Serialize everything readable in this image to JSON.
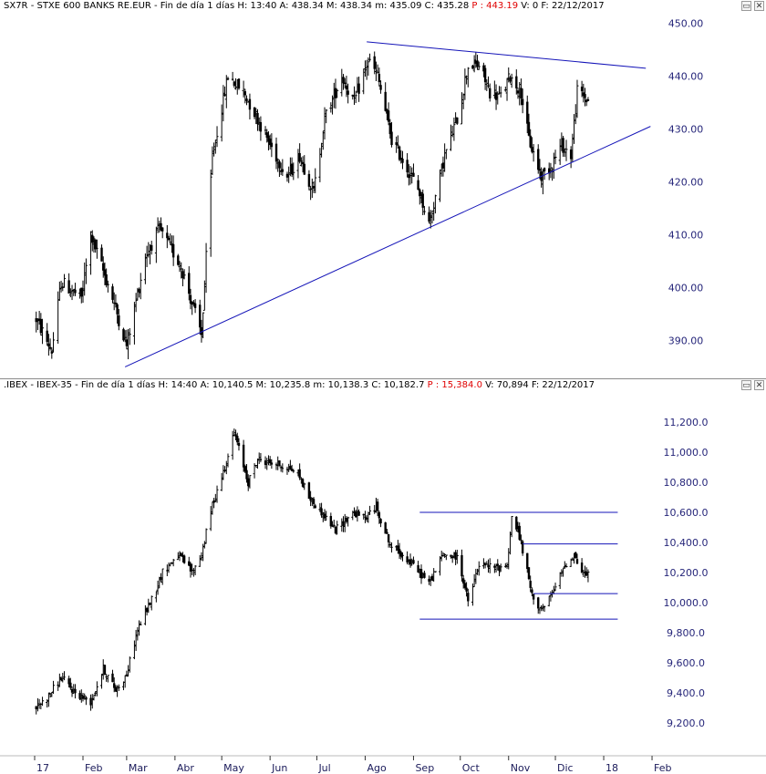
{
  "colors": {
    "candle": "#000000",
    "trendline": "#1414b8",
    "axis_text": "#26267a"
  },
  "charts": [
    {
      "header": {
        "text": "SX7R - STXE 600 BANKS RE.EUR - Fin de día 1 días  H: 13:40  A: 438.34  M: 438.34  m: 435.09  C: 435.28 ",
        "p": "P : 443.19",
        "tail": "  V: 0  F: 22/12/2017"
      },
      "window_buttons": [
        "▭",
        "✕"
      ]
    },
    {
      "header": {
        "text": ".IBEX - IBEX-35 - Fin de día 1 días  H: 14:40  A: 10,140.5  M: 10,235.8  m: 10,138.3  C: 10,182.7 ",
        "p": "P : 15,384.0",
        "tail": "  V: 70,894  F: 22/12/2017"
      },
      "window_buttons": [
        "▭",
        "✕"
      ]
    }
  ],
  "x_axis": {
    "labels": [
      "17",
      "Feb",
      "Mar",
      "Abr",
      "May",
      "Jun",
      "Jul",
      "Ago",
      "Sep",
      "Oct",
      "Nov",
      "Dic",
      "18",
      "Feb"
    ],
    "dates": [
      "2017-01-01",
      "2017-02-01",
      "2017-03-01",
      "2017-04-01",
      "2017-05-01",
      "2017-06-01",
      "2017-07-01",
      "2017-08-01",
      "2017-09-01",
      "2017-10-01",
      "2017-11-01",
      "2017-12-01",
      "2018-01-01",
      "2018-02-01"
    ]
  },
  "chart_data": [
    {
      "type": "candlestick",
      "title": "SX7R - STXE 600 BANKS RE.EUR",
      "ylim": [
        383,
        452
      ],
      "y_ticks": [
        "390.00",
        "400.00",
        "410.00",
        "420.00",
        "430.00",
        "440.00",
        "450.00"
      ],
      "y_tick_values": [
        390,
        400,
        410,
        420,
        430,
        440,
        450
      ],
      "anchors": [
        [
          "2017-01-02",
          394
        ],
        [
          "2017-01-12",
          388
        ],
        [
          "2017-01-18",
          401
        ],
        [
          "2017-01-31",
          398
        ],
        [
          "2017-02-06",
          410
        ],
        [
          "2017-02-20",
          398
        ],
        [
          "2017-03-01",
          389
        ],
        [
          "2017-03-13",
          406
        ],
        [
          "2017-03-22",
          411
        ],
        [
          "2017-04-05",
          404
        ],
        [
          "2017-04-18",
          391
        ],
        [
          "2017-04-25",
          425
        ],
        [
          "2017-05-05",
          440
        ],
        [
          "2017-05-15",
          437
        ],
        [
          "2017-05-24",
          432
        ],
        [
          "2017-06-01",
          427
        ],
        [
          "2017-06-12",
          421
        ],
        [
          "2017-06-20",
          425
        ],
        [
          "2017-06-29",
          418
        ],
        [
          "2017-07-06",
          432
        ],
        [
          "2017-07-17",
          440
        ],
        [
          "2017-07-25",
          435
        ],
        [
          "2017-08-03",
          443
        ],
        [
          "2017-08-09",
          440
        ],
        [
          "2017-08-18",
          428
        ],
        [
          "2017-08-29",
          422
        ],
        [
          "2017-09-05",
          418
        ],
        [
          "2017-09-11",
          412
        ],
        [
          "2017-09-21",
          425
        ],
        [
          "2017-09-29",
          432
        ],
        [
          "2017-10-06",
          442
        ],
        [
          "2017-10-13",
          442
        ],
        [
          "2017-10-20",
          437
        ],
        [
          "2017-10-27",
          436
        ],
        [
          "2017-11-02",
          440
        ],
        [
          "2017-11-09",
          437
        ],
        [
          "2017-11-14",
          428
        ],
        [
          "2017-11-22",
          421
        ],
        [
          "2017-11-28",
          423
        ],
        [
          "2017-12-05",
          427
        ],
        [
          "2017-12-11",
          425
        ],
        [
          "2017-12-15",
          437
        ],
        [
          "2017-12-20",
          436
        ],
        [
          "2017-12-22",
          435.28
        ]
      ],
      "trendlines": [
        {
          "from": [
            "2017-02-28",
            385
          ],
          "to": [
            "2018-01-31",
            430.5
          ]
        },
        {
          "from": [
            "2017-08-02",
            446.5
          ],
          "to": [
            "2018-01-28",
            441.5
          ]
        }
      ]
    },
    {
      "type": "candlestick",
      "title": "IBEX-35",
      "ylim": [
        9000,
        11400
      ],
      "y_ticks": [
        "9,200.0",
        "9,400.0",
        "9,600.0",
        "9,800.0",
        "10,000.0",
        "10,200.0",
        "10,400.0",
        "10,600.0",
        "10,800.0",
        "11,000.0",
        "11,200.0"
      ],
      "y_tick_values": [
        9200,
        9400,
        9600,
        9800,
        10000,
        10200,
        10400,
        10600,
        10800,
        11000,
        11200
      ],
      "anchors": [
        [
          "2017-01-02",
          9300
        ],
        [
          "2017-01-10",
          9380
        ],
        [
          "2017-01-18",
          9500
        ],
        [
          "2017-01-27",
          9400
        ],
        [
          "2017-02-06",
          9340
        ],
        [
          "2017-02-14",
          9560
        ],
        [
          "2017-02-22",
          9420
        ],
        [
          "2017-03-01",
          9520
        ],
        [
          "2017-03-08",
          9820
        ],
        [
          "2017-03-16",
          10000
        ],
        [
          "2017-03-24",
          10200
        ],
        [
          "2017-04-03",
          10320
        ],
        [
          "2017-04-12",
          10200
        ],
        [
          "2017-04-18",
          10320
        ],
        [
          "2017-04-25",
          10650
        ],
        [
          "2017-05-03",
          10900
        ],
        [
          "2017-05-09",
          11130
        ],
        [
          "2017-05-18",
          10800
        ],
        [
          "2017-05-24",
          10950
        ],
        [
          "2017-06-02",
          10930
        ],
        [
          "2017-06-12",
          10900
        ],
        [
          "2017-06-19",
          10860
        ],
        [
          "2017-06-26",
          10700
        ],
        [
          "2017-07-04",
          10600
        ],
        [
          "2017-07-13",
          10480
        ],
        [
          "2017-07-24",
          10600
        ],
        [
          "2017-08-01",
          10560
        ],
        [
          "2017-08-08",
          10640
        ],
        [
          "2017-08-17",
          10380
        ],
        [
          "2017-08-25",
          10320
        ],
        [
          "2017-09-05",
          10200
        ],
        [
          "2017-09-11",
          10130
        ],
        [
          "2017-09-20",
          10320
        ],
        [
          "2017-09-29",
          10300
        ],
        [
          "2017-10-03",
          10150
        ],
        [
          "2017-10-06",
          10000
        ],
        [
          "2017-10-13",
          10250
        ],
        [
          "2017-10-24",
          10230
        ],
        [
          "2017-10-31",
          10250
        ],
        [
          "2017-11-03",
          10560
        ],
        [
          "2017-11-07",
          10480
        ],
        [
          "2017-11-13",
          10200
        ],
        [
          "2017-11-17",
          10000
        ],
        [
          "2017-11-24",
          9960
        ],
        [
          "2017-12-01",
          10100
        ],
        [
          "2017-12-07",
          10250
        ],
        [
          "2017-12-13",
          10320
        ],
        [
          "2017-12-18",
          10200
        ],
        [
          "2017-12-22",
          10182.7
        ]
      ],
      "hlines": [
        {
          "from": "2017-09-05",
          "to": "2018-01-10",
          "y": 10600
        },
        {
          "from": "2017-11-10",
          "to": "2018-01-10",
          "y": 10390
        },
        {
          "from": "2017-11-17",
          "to": "2018-01-10",
          "y": 10060
        },
        {
          "from": "2017-09-05",
          "to": "2018-01-10",
          "y": 9890
        }
      ]
    }
  ]
}
